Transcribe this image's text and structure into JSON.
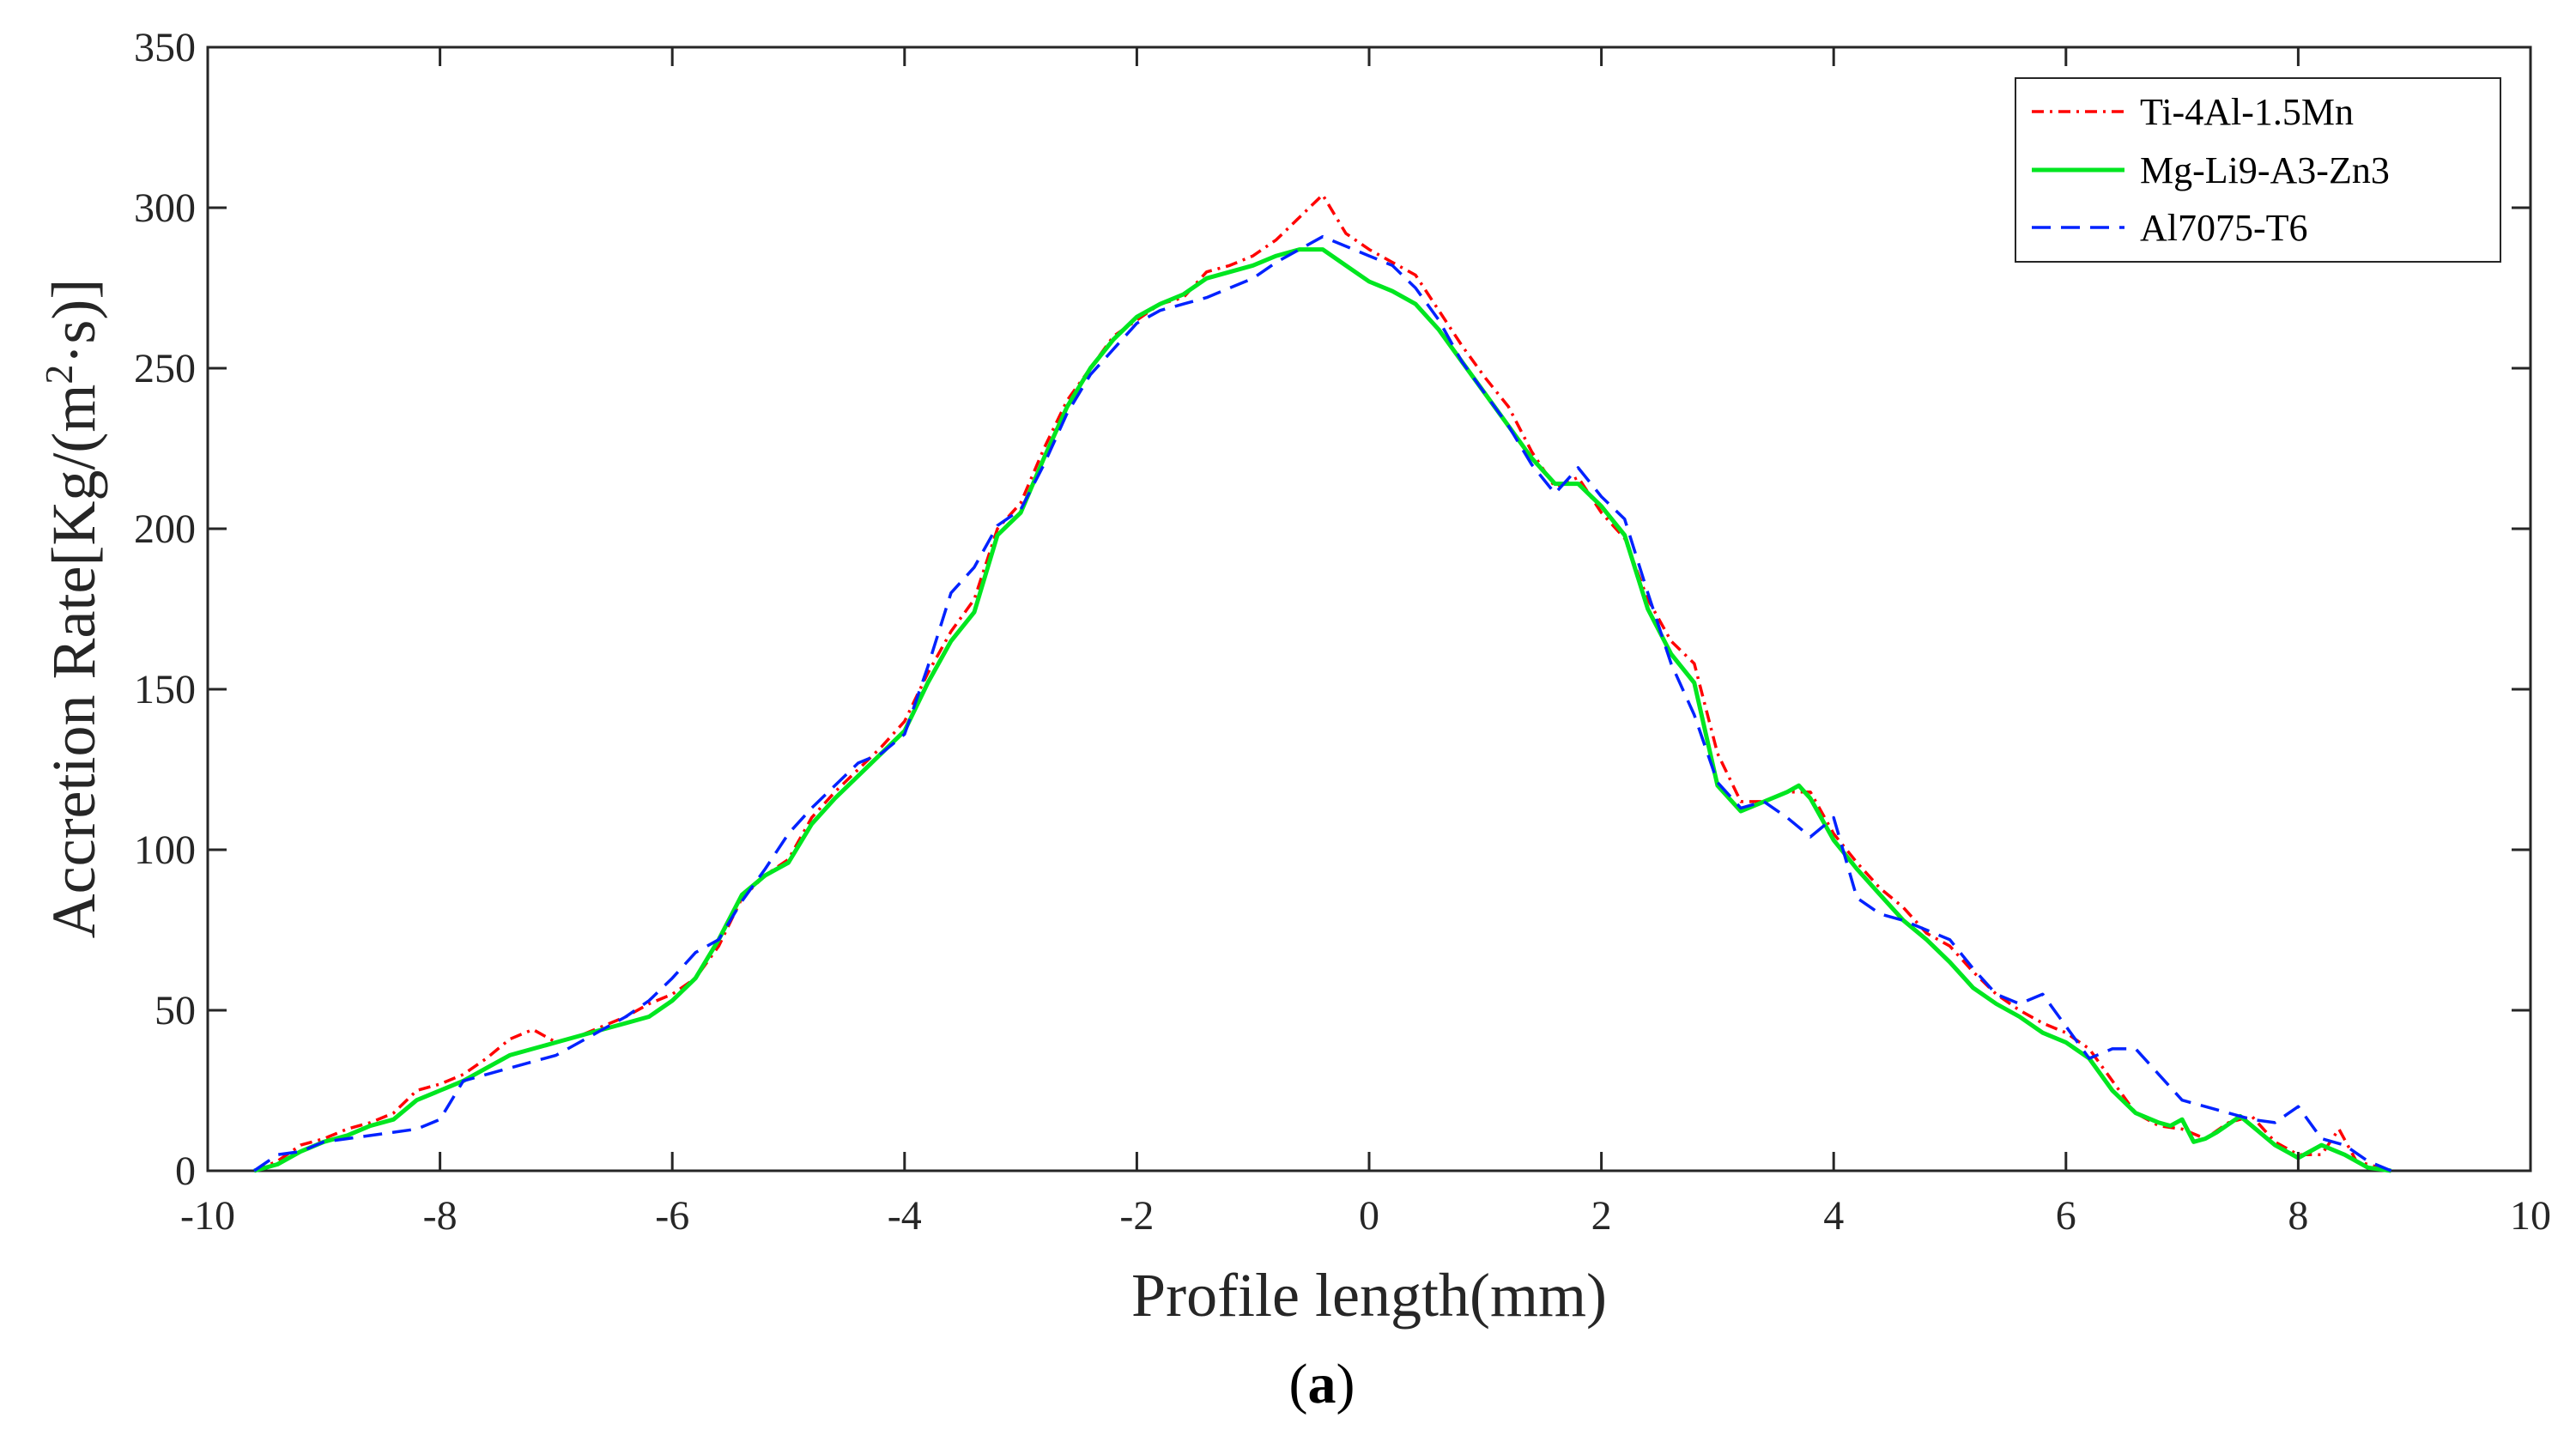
{
  "chart_data": {
    "type": "line",
    "title": "",
    "xlabel": "Profile length(mm)",
    "ylabel_main": "Accretion Rate[Kg/(m",
    "ylabel_sup": "2",
    "ylabel_tail": "·s)]",
    "xlim": [
      -10,
      10
    ],
    "ylim": [
      0,
      350
    ],
    "xticks": [
      -10,
      -8,
      -6,
      -4,
      -2,
      0,
      2,
      4,
      6,
      8,
      10
    ],
    "yticks": [
      0,
      50,
      100,
      150,
      200,
      250,
      300,
      350
    ],
    "grid": false,
    "legend_position": "top-right",
    "series": [
      {
        "name": "Ti-4Al-1.5Mn",
        "color": "#ff0000",
        "style": "dash-dot",
        "x": [
          -9.6,
          -9.4,
          -9.2,
          -9.0,
          -8.8,
          -8.6,
          -8.4,
          -8.2,
          -8.0,
          -7.8,
          -7.6,
          -7.4,
          -7.2,
          -7.0,
          -6.8,
          -6.6,
          -6.4,
          -6.2,
          -6.0,
          -5.8,
          -5.6,
          -5.4,
          -5.2,
          -5.0,
          -4.8,
          -4.6,
          -4.4,
          -4.2,
          -4.0,
          -3.8,
          -3.6,
          -3.4,
          -3.2,
          -3.0,
          -2.8,
          -2.6,
          -2.4,
          -2.2,
          -2.0,
          -1.8,
          -1.6,
          -1.4,
          -1.2,
          -1.0,
          -0.8,
          -0.6,
          -0.4,
          -0.3,
          -0.2,
          0.0,
          0.2,
          0.4,
          0.6,
          0.8,
          1.0,
          1.2,
          1.4,
          1.6,
          1.8,
          2.0,
          2.2,
          2.4,
          2.6,
          2.8,
          3.0,
          3.2,
          3.4,
          3.6,
          3.8,
          4.0,
          4.2,
          4.4,
          4.6,
          4.8,
          5.0,
          5.2,
          5.4,
          5.6,
          5.8,
          6.0,
          6.2,
          6.4,
          6.6,
          6.8,
          7.0,
          7.2,
          7.4,
          7.6,
          7.8,
          8.0,
          8.2,
          8.35,
          8.5,
          8.7,
          8.8
        ],
        "y": [
          0,
          3,
          8,
          10,
          13,
          15,
          18,
          25,
          27,
          30,
          35,
          41,
          44,
          40,
          42,
          45,
          48,
          52,
          55,
          60,
          70,
          85,
          92,
          97,
          110,
          118,
          125,
          132,
          140,
          155,
          168,
          178,
          200,
          208,
          225,
          240,
          250,
          260,
          265,
          270,
          272,
          280,
          282,
          285,
          290,
          297,
          304,
          298,
          292,
          287,
          283,
          279,
          268,
          257,
          247,
          238,
          224,
          213,
          216,
          205,
          197,
          178,
          165,
          158,
          130,
          115,
          115,
          118,
          118,
          105,
          96,
          88,
          82,
          74,
          70,
          62,
          55,
          50,
          46,
          43,
          38,
          28,
          18,
          14,
          13,
          10,
          15,
          17,
          9,
          5,
          5,
          13,
          3,
          1,
          0
        ]
      },
      {
        "name": "Mg-Li9-A3-Zn3",
        "color": "#00e620",
        "style": "solid",
        "x": [
          -9.6,
          -9.4,
          -9.2,
          -9.0,
          -8.8,
          -8.6,
          -8.4,
          -8.2,
          -8.0,
          -7.8,
          -7.6,
          -7.4,
          -7.2,
          -7.0,
          -6.8,
          -6.6,
          -6.4,
          -6.2,
          -6.0,
          -5.8,
          -5.6,
          -5.4,
          -5.2,
          -5.0,
          -4.8,
          -4.6,
          -4.4,
          -4.2,
          -4.0,
          -3.8,
          -3.6,
          -3.4,
          -3.2,
          -3.0,
          -2.8,
          -2.6,
          -2.4,
          -2.2,
          -2.0,
          -1.8,
          -1.6,
          -1.4,
          -1.2,
          -1.0,
          -0.8,
          -0.6,
          -0.4,
          -0.2,
          0.0,
          0.2,
          0.4,
          0.6,
          0.8,
          1.0,
          1.2,
          1.4,
          1.6,
          1.8,
          2.0,
          2.2,
          2.4,
          2.6,
          2.8,
          3.0,
          3.2,
          3.4,
          3.6,
          3.7,
          3.8,
          4.0,
          4.2,
          4.4,
          4.6,
          4.8,
          5.0,
          5.2,
          5.4,
          5.6,
          5.8,
          6.0,
          6.2,
          6.4,
          6.6,
          6.8,
          6.9,
          7.0,
          7.1,
          7.2,
          7.3,
          7.5,
          7.6,
          7.8,
          8.0,
          8.2,
          8.4,
          8.6,
          8.8
        ],
        "y": [
          0,
          2,
          6,
          9,
          11,
          14,
          16,
          22,
          25,
          28,
          32,
          36,
          38,
          40,
          42,
          44,
          46,
          48,
          53,
          60,
          72,
          86,
          92,
          96,
          108,
          116,
          123,
          130,
          137,
          152,
          165,
          174,
          198,
          205,
          222,
          238,
          250,
          259,
          266,
          270,
          273,
          278,
          280,
          282,
          285,
          287,
          287,
          282,
          277,
          274,
          270,
          262,
          252,
          242,
          232,
          222,
          214,
          214,
          207,
          198,
          175,
          161,
          152,
          120,
          112,
          115,
          118,
          120,
          116,
          103,
          94,
          86,
          78,
          72,
          65,
          57,
          52,
          48,
          43,
          40,
          35,
          25,
          18,
          15,
          14,
          16,
          9,
          10,
          12,
          17,
          14,
          8,
          4,
          8,
          5,
          1,
          0
        ]
      },
      {
        "name": "Al7075-T6",
        "color": "#0022ff",
        "style": "dashed",
        "x": [
          -9.6,
          -9.4,
          -9.2,
          -9.0,
          -8.8,
          -8.6,
          -8.4,
          -8.2,
          -8.0,
          -7.8,
          -7.6,
          -7.4,
          -7.2,
          -7.0,
          -6.8,
          -6.6,
          -6.4,
          -6.2,
          -6.0,
          -5.8,
          -5.6,
          -5.4,
          -5.2,
          -5.0,
          -4.8,
          -4.6,
          -4.4,
          -4.2,
          -4.0,
          -3.8,
          -3.6,
          -3.4,
          -3.2,
          -3.0,
          -2.8,
          -2.6,
          -2.4,
          -2.2,
          -2.0,
          -1.8,
          -1.6,
          -1.4,
          -1.2,
          -1.0,
          -0.8,
          -0.6,
          -0.4,
          -0.2,
          0.0,
          0.2,
          0.4,
          0.6,
          0.8,
          1.0,
          1.2,
          1.4,
          1.6,
          1.8,
          2.0,
          2.2,
          2.4,
          2.6,
          2.8,
          3.0,
          3.2,
          3.4,
          3.6,
          3.8,
          4.0,
          4.2,
          4.4,
          4.6,
          4.8,
          5.0,
          5.2,
          5.4,
          5.6,
          5.8,
          6.0,
          6.2,
          6.4,
          6.6,
          6.8,
          7.0,
          7.2,
          7.4,
          7.6,
          7.8,
          8.0,
          8.2,
          8.4,
          8.6,
          8.8
        ],
        "y": [
          0,
          5,
          6,
          9,
          10,
          11,
          12,
          13,
          16,
          28,
          30,
          32,
          34,
          36,
          40,
          44,
          48,
          53,
          60,
          68,
          72,
          84,
          94,
          105,
          113,
          120,
          127,
          130,
          136,
          157,
          180,
          188,
          201,
          206,
          220,
          236,
          248,
          256,
          264,
          268,
          270,
          272,
          275,
          278,
          283,
          287,
          291,
          288,
          285,
          282,
          275,
          265,
          252,
          242,
          232,
          220,
          211,
          219,
          210,
          203,
          180,
          158,
          142,
          121,
          113,
          115,
          110,
          104,
          110,
          85,
          80,
          78,
          75,
          72,
          63,
          55,
          52,
          55,
          45,
          35,
          38,
          38,
          30,
          22,
          20,
          18,
          16,
          15,
          20,
          10,
          8,
          3,
          0
        ]
      }
    ]
  },
  "caption": {
    "open": "(",
    "letter": "a",
    "close": ")"
  }
}
